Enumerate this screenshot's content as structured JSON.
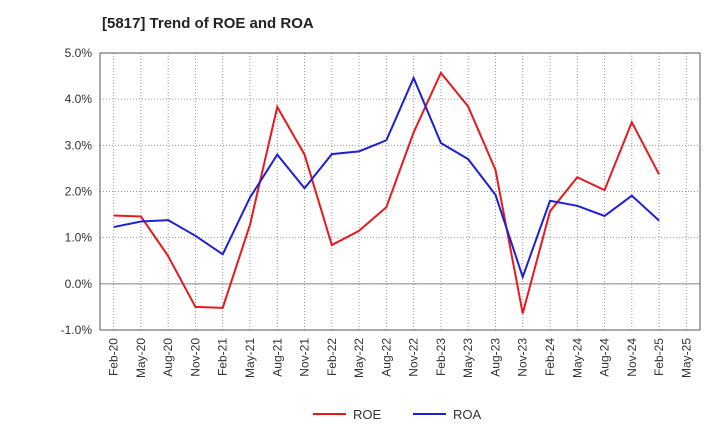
{
  "title": "[5817]  Trend of ROE and ROA",
  "chart_data": {
    "type": "line",
    "title": "[5817]  Trend of ROE and ROA",
    "xlabel": "",
    "ylabel": "",
    "ylim": [
      -1.0,
      5.0
    ],
    "yticks": [
      "-1.0%",
      "0.0%",
      "1.0%",
      "2.0%",
      "3.0%",
      "4.0%",
      "5.0%"
    ],
    "ytick_values": [
      -1,
      0,
      1,
      2,
      3,
      4,
      5
    ],
    "categories": [
      "Feb-20",
      "May-20",
      "Aug-20",
      "Nov-20",
      "Feb-21",
      "May-21",
      "Aug-21",
      "Nov-21",
      "Feb-22",
      "May-22",
      "Aug-22",
      "Nov-22",
      "Feb-23",
      "May-23",
      "Aug-23",
      "Nov-23",
      "Feb-24",
      "May-24",
      "Aug-24",
      "Nov-24",
      "Feb-25",
      "May-25"
    ],
    "grid": true,
    "legend_position": "bottom",
    "series": [
      {
        "name": "ROE",
        "color": "#e8191c",
        "values": [
          1.48,
          1.46,
          0.6,
          -0.5,
          -0.52,
          1.28,
          3.83,
          2.8,
          0.84,
          1.15,
          1.66,
          3.28,
          4.57,
          3.84,
          2.47,
          -0.64,
          1.57,
          2.31,
          2.03,
          3.5,
          2.37,
          null
        ]
      },
      {
        "name": "ROA",
        "color": "#1f1fd6",
        "values": [
          1.23,
          1.35,
          1.38,
          1.04,
          0.64,
          1.87,
          2.8,
          2.07,
          2.81,
          2.87,
          3.11,
          4.46,
          3.05,
          2.7,
          1.93,
          0.15,
          1.8,
          1.69,
          1.47,
          1.91,
          1.37,
          null
        ]
      }
    ]
  }
}
